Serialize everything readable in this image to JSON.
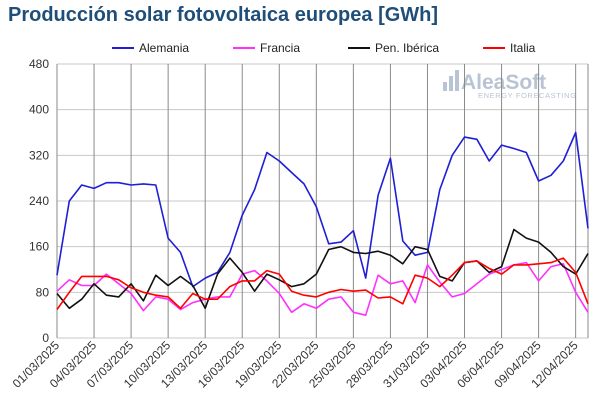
{
  "chart_data": {
    "type": "line",
    "title": "Producción solar fotovoltaica europea [GWh]",
    "xlabel": "",
    "ylabel": "",
    "ylim": [
      0,
      480
    ],
    "yticks": [
      0,
      80,
      160,
      240,
      320,
      400,
      480
    ],
    "grid": true,
    "legend_position": "top",
    "x_start": "2025-03-01",
    "x_end": "2025-04-14",
    "x_tick_labels": [
      "01/03/2025",
      "04/03/2025",
      "07/03/2025",
      "10/03/2025",
      "13/03/2025",
      "16/03/2025",
      "19/03/2025",
      "22/03/2025",
      "25/03/2025",
      "28/03/2025",
      "31/03/2025",
      "03/04/2025",
      "06/04/2025",
      "09/04/2025",
      "12/04/2025"
    ],
    "series": [
      {
        "name": "Alemania",
        "color": "#1f1fd6",
        "values": [
          110,
          240,
          268,
          262,
          272,
          272,
          268,
          270,
          268,
          175,
          150,
          90,
          105,
          115,
          150,
          215,
          260,
          325,
          310,
          290,
          270,
          230,
          165,
          168,
          188,
          105,
          250,
          315,
          170,
          145,
          150,
          260,
          320,
          352,
          348,
          310,
          338,
          332,
          325,
          275,
          285,
          310,
          360,
          192
        ]
      },
      {
        "name": "Francia",
        "color": "#ff30ff",
        "values": [
          82,
          102,
          92,
          92,
          112,
          95,
          78,
          48,
          72,
          68,
          50,
          62,
          68,
          72,
          72,
          112,
          118,
          100,
          78,
          45,
          60,
          52,
          68,
          72,
          45,
          40,
          110,
          95,
          100,
          62,
          128,
          98,
          72,
          78,
          95,
          112,
          120,
          128,
          132,
          100,
          125,
          130,
          80,
          45
        ]
      },
      {
        "name": "Pen. Ibérica",
        "color": "#111111",
        "values": [
          78,
          52,
          68,
          95,
          75,
          72,
          95,
          65,
          110,
          92,
          108,
          92,
          52,
          112,
          140,
          115,
          82,
          112,
          102,
          90,
          95,
          112,
          155,
          160,
          150,
          148,
          152,
          145,
          130,
          160,
          155,
          108,
          100,
          132,
          135,
          115,
          125,
          190,
          175,
          168,
          150,
          125,
          112,
          148
        ]
      },
      {
        "name": "Italia",
        "color": "#ff0000",
        "values": [
          50,
          80,
          108,
          108,
          108,
          102,
          88,
          80,
          75,
          72,
          52,
          78,
          68,
          68,
          90,
          100,
          100,
          118,
          112,
          82,
          75,
          72,
          80,
          85,
          82,
          84,
          70,
          72,
          60,
          110,
          105,
          90,
          110,
          132,
          135,
          122,
          112,
          128,
          128,
          130,
          132,
          140,
          115,
          60
        ]
      }
    ]
  },
  "watermark": {
    "brand": "AleaSoft",
    "tagline": "ENERGY FORECASTING"
  }
}
